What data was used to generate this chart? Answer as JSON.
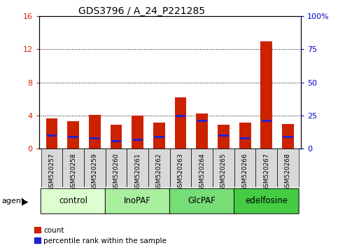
{
  "title": "GDS3796 / A_24_P221285",
  "samples": [
    "GSM520257",
    "GSM520258",
    "GSM520259",
    "GSM520260",
    "GSM520261",
    "GSM520262",
    "GSM520263",
    "GSM520264",
    "GSM520265",
    "GSM520266",
    "GSM520267",
    "GSM520268"
  ],
  "count_values": [
    3.7,
    3.3,
    4.1,
    2.9,
    4.0,
    3.2,
    6.2,
    4.3,
    2.9,
    3.2,
    13.0,
    3.0
  ],
  "percentile_values": [
    10.0,
    9.0,
    8.0,
    6.0,
    7.0,
    9.0,
    25.0,
    21.0,
    10.0,
    8.0,
    21.0,
    9.0
  ],
  "count_color": "#cc2200",
  "percentile_color": "#2222cc",
  "ylim_left": [
    0,
    16
  ],
  "ylim_right": [
    0,
    100
  ],
  "yticks_left": [
    0,
    4,
    8,
    12,
    16
  ],
  "yticks_right": [
    0,
    25,
    50,
    75,
    100
  ],
  "groups": [
    {
      "label": "control",
      "start": 0,
      "end": 3,
      "color": "#ddffd0"
    },
    {
      "label": "InoPAF",
      "start": 3,
      "end": 6,
      "color": "#aaeea0"
    },
    {
      "label": "GlcPAF",
      "start": 6,
      "end": 9,
      "color": "#77dd77"
    },
    {
      "label": "edelfosine",
      "start": 9,
      "end": 12,
      "color": "#44cc44"
    }
  ],
  "legend_count": "count",
  "legend_pct": "percentile rank within the sample",
  "bar_width": 0.55,
  "tick_label_fontsize": 6.5,
  "title_fontsize": 10,
  "axis_label_color_left": "#cc2200",
  "axis_label_color_right": "#0000cc",
  "axis_tick_fontsize": 8,
  "group_label_fontsize": 8.5,
  "cell_bg": "#d8d8d8"
}
